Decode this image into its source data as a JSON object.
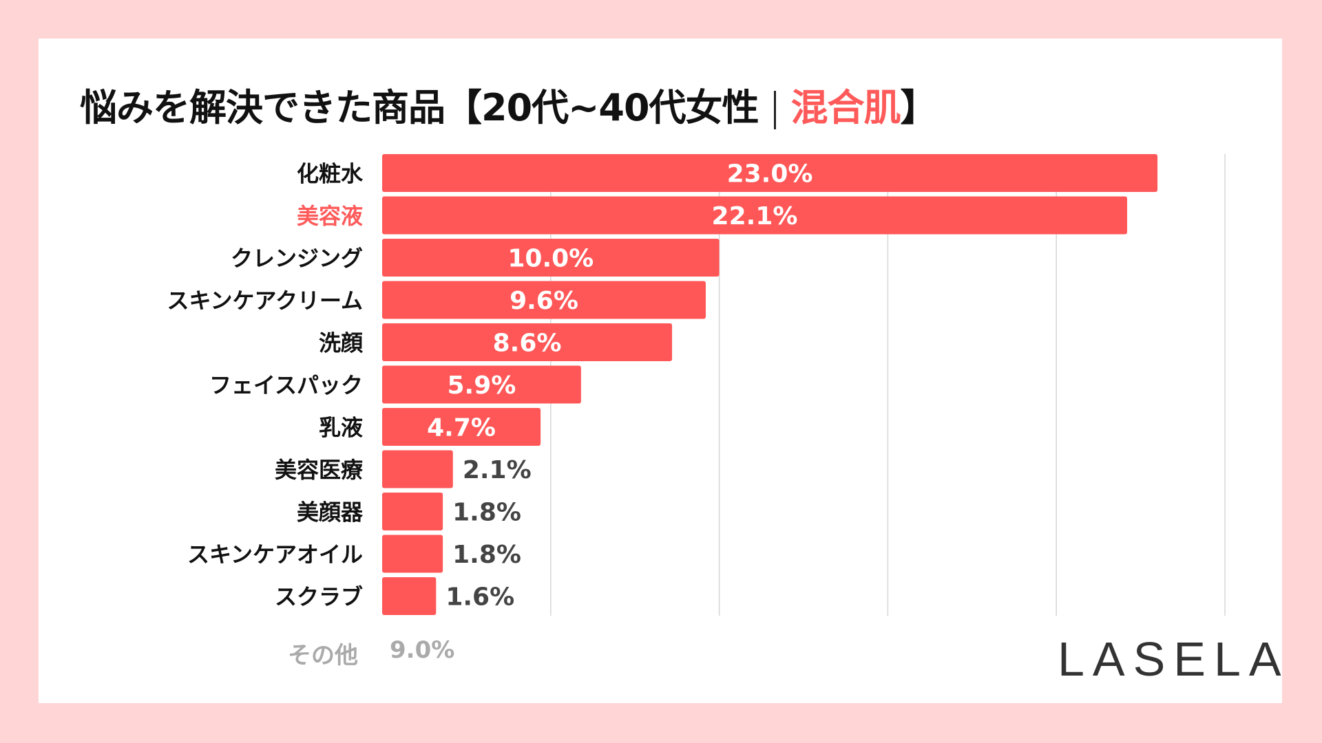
{
  "title": {
    "main": "悩みを解決できた商品【20代~40代女性",
    "accent": "混合肌",
    "close": "】"
  },
  "colors": {
    "bar": "#ff5757",
    "highlight_label": "#ff5a5a",
    "background": "#ffd5d6",
    "outside_label": "#444444",
    "other": "#aaaaaa"
  },
  "chart_data": {
    "type": "bar",
    "orientation": "horizontal",
    "categories": [
      "化粧水",
      "美容液",
      "クレンジング",
      "スキンケアクリーム",
      "洗顔",
      "フェイスパック",
      "乳液",
      "美容医療",
      "美顔器",
      "スキンケアオイル",
      "スクラブ"
    ],
    "values": [
      23.0,
      22.1,
      10.0,
      9.6,
      8.6,
      5.9,
      4.7,
      2.1,
      1.8,
      1.8,
      1.6
    ],
    "data_labels": [
      "23.0%",
      "22.1%",
      "10.0%",
      "9.6%",
      "8.6%",
      "5.9%",
      "4.7%",
      "2.1%",
      "1.8%",
      "1.8%",
      "1.6%"
    ],
    "highlighted_category": "美容液",
    "xlim": [
      0,
      25
    ],
    "grid_step": 5,
    "grid": true
  },
  "other": {
    "label": "その他",
    "value": "9.0%"
  },
  "logo": "LASELA"
}
